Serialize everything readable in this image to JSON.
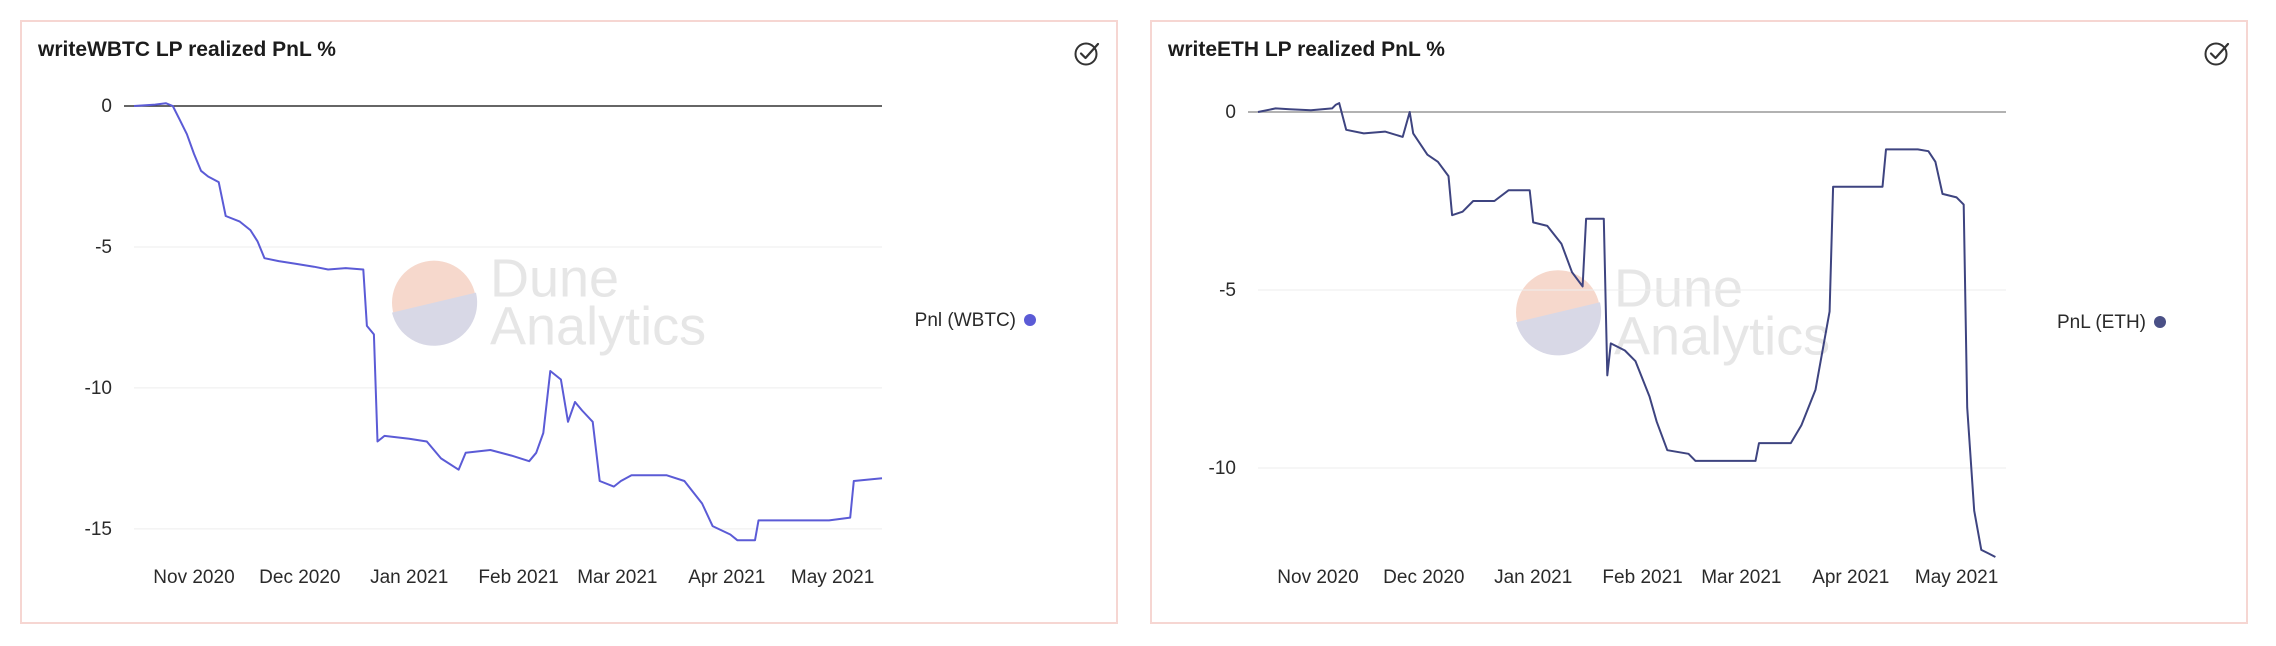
{
  "chart_data": [
    {
      "type": "line",
      "title": "writeWBTC LP realized PnL %",
      "watermark": [
        "Dune",
        "Analytics"
      ],
      "xlabel": "",
      "ylabel": "",
      "x_ticks": [
        "Nov 2020",
        "Dec 2020",
        "Jan 2021",
        "Feb 2021",
        "Mar 2021",
        "Apr 2021",
        "May 2021"
      ],
      "x_tick_dates": [
        "2020-11-01",
        "2020-12-01",
        "2021-01-01",
        "2021-02-01",
        "2021-03-01",
        "2021-04-01",
        "2021-05-01"
      ],
      "y_ticks": [
        0,
        -5,
        -10,
        -15
      ],
      "xlim": [
        "2020-10-15",
        "2021-05-15"
      ],
      "ylim": [
        -15.5,
        0
      ],
      "grid": "horizontal",
      "zero_line": true,
      "legend_position": "right",
      "series": [
        {
          "name": "Pnl (WBTC)",
          "color": "#5b5bd6",
          "dot_color": "#5b5bd6",
          "points": [
            [
              "2020-10-15",
              0
            ],
            [
              "2020-10-21",
              0.05
            ],
            [
              "2020-10-24",
              0.1
            ],
            [
              "2020-10-26",
              0
            ],
            [
              "2020-10-28",
              -0.5
            ],
            [
              "2020-10-30",
              -1
            ],
            [
              "2020-11-01",
              -1.7
            ],
            [
              "2020-11-03",
              -2.3
            ],
            [
              "2020-11-05",
              -2.5
            ],
            [
              "2020-11-08",
              -2.7
            ],
            [
              "2020-11-10",
              -3.9
            ],
            [
              "2020-11-14",
              -4.1
            ],
            [
              "2020-11-17",
              -4.4
            ],
            [
              "2020-11-19",
              -4.8
            ],
            [
              "2020-11-21",
              -5.4
            ],
            [
              "2020-11-25",
              -5.5
            ],
            [
              "2020-11-30",
              -5.6
            ],
            [
              "2020-12-05",
              -5.7
            ],
            [
              "2020-12-09",
              -5.8
            ],
            [
              "2020-12-14",
              -5.75
            ],
            [
              "2020-12-19",
              -5.8
            ],
            [
              "2020-12-20",
              -7.8
            ],
            [
              "2020-12-22",
              -8.1
            ],
            [
              "2020-12-23",
              -11.9
            ],
            [
              "2020-12-25",
              -11.7
            ],
            [
              "2021-01-01",
              -11.8
            ],
            [
              "2021-01-06",
              -11.9
            ],
            [
              "2021-01-10",
              -12.5
            ],
            [
              "2021-01-15",
              -12.9
            ],
            [
              "2021-01-17",
              -12.3
            ],
            [
              "2021-01-24",
              -12.2
            ],
            [
              "2021-01-30",
              -12.4
            ],
            [
              "2021-02-04",
              -12.6
            ],
            [
              "2021-02-06",
              -12.3
            ],
            [
              "2021-02-08",
              -11.6
            ],
            [
              "2021-02-10",
              -9.4
            ],
            [
              "2021-02-13",
              -9.7
            ],
            [
              "2021-02-15",
              -11.2
            ],
            [
              "2021-02-17",
              -10.5
            ],
            [
              "2021-02-19",
              -10.8
            ],
            [
              "2021-02-22",
              -11.2
            ],
            [
              "2021-02-24",
              -13.3
            ],
            [
              "2021-02-28",
              -13.5
            ],
            [
              "2021-03-02",
              -13.3
            ],
            [
              "2021-03-05",
              -13.1
            ],
            [
              "2021-03-15",
              -13.1
            ],
            [
              "2021-03-20",
              -13.3
            ],
            [
              "2021-03-25",
              -14.1
            ],
            [
              "2021-03-28",
              -14.9
            ],
            [
              "2021-04-02",
              -15.2
            ],
            [
              "2021-04-04",
              -15.4
            ],
            [
              "2021-04-09",
              -15.4
            ],
            [
              "2021-04-10",
              -14.7
            ],
            [
              "2021-04-20",
              -14.7
            ],
            [
              "2021-04-30",
              -14.7
            ],
            [
              "2021-05-06",
              -14.6
            ],
            [
              "2021-05-07",
              -13.3
            ],
            [
              "2021-05-15",
              -13.2
            ]
          ]
        }
      ]
    },
    {
      "type": "line",
      "title": "writeETH LP realized PnL %",
      "watermark": [
        "Dune",
        "Analytics"
      ],
      "xlabel": "",
      "ylabel": "",
      "x_ticks": [
        "Nov 2020",
        "Dec 2020",
        "Jan 2021",
        "Feb 2021",
        "Mar 2021",
        "Apr 2021",
        "May 2021"
      ],
      "x_tick_dates": [
        "2020-11-01",
        "2020-12-01",
        "2021-01-01",
        "2021-02-01",
        "2021-03-01",
        "2021-04-01",
        "2021-05-01"
      ],
      "y_ticks": [
        0,
        -5,
        -10
      ],
      "xlim": [
        "2020-10-15",
        "2021-05-15"
      ],
      "ylim": [
        -12.5,
        0
      ],
      "grid": "horizontal",
      "zero_line": true,
      "legend_position": "right",
      "series": [
        {
          "name": "PnL (ETH)",
          "color": "#3e4480",
          "dot_color": "#4a5086",
          "points": [
            [
              "2020-10-15",
              0
            ],
            [
              "2020-10-20",
              0.1
            ],
            [
              "2020-10-24",
              0.08
            ],
            [
              "2020-10-30",
              0.05
            ],
            [
              "2020-11-05",
              0.1
            ],
            [
              "2020-11-06",
              0.2
            ],
            [
              "2020-11-07",
              0.25
            ],
            [
              "2020-11-09",
              -0.5
            ],
            [
              "2020-11-14",
              -0.6
            ],
            [
              "2020-11-20",
              -0.55
            ],
            [
              "2020-11-25",
              -0.7
            ],
            [
              "2020-11-27",
              0
            ],
            [
              "2020-11-28",
              -0.6
            ],
            [
              "2020-12-02",
              -1.2
            ],
            [
              "2020-12-05",
              -1.4
            ],
            [
              "2020-12-08",
              -1.8
            ],
            [
              "2020-12-09",
              -2.9
            ],
            [
              "2020-12-12",
              -2.8
            ],
            [
              "2020-12-15",
              -2.5
            ],
            [
              "2020-12-21",
              -2.5
            ],
            [
              "2020-12-25",
              -2.2
            ],
            [
              "2020-12-31",
              -2.2
            ],
            [
              "2021-01-01",
              -3.1
            ],
            [
              "2021-01-05",
              -3.2
            ],
            [
              "2021-01-09",
              -3.7
            ],
            [
              "2021-01-12",
              -4.5
            ],
            [
              "2021-01-15",
              -4.9
            ],
            [
              "2021-01-16",
              -3
            ],
            [
              "2021-01-21",
              -3
            ],
            [
              "2021-01-22",
              -7.4
            ],
            [
              "2021-01-23",
              -6.5
            ],
            [
              "2021-01-27",
              -6.7
            ],
            [
              "2021-01-30",
              -7
            ],
            [
              "2021-02-03",
              -8
            ],
            [
              "2021-02-05",
              -8.7
            ],
            [
              "2021-02-08",
              -9.5
            ],
            [
              "2021-02-14",
              -9.6
            ],
            [
              "2021-02-16",
              -9.8
            ],
            [
              "2021-02-25",
              -9.8
            ],
            [
              "2021-03-01",
              -9.8
            ],
            [
              "2021-03-05",
              -9.8
            ],
            [
              "2021-03-06",
              -9.3
            ],
            [
              "2021-03-15",
              -9.3
            ],
            [
              "2021-03-18",
              -8.8
            ],
            [
              "2021-03-22",
              -7.8
            ],
            [
              "2021-03-26",
              -5.6
            ],
            [
              "2021-03-27",
              -2.1
            ],
            [
              "2021-04-01",
              -2.1
            ],
            [
              "2021-04-10",
              -2.1
            ],
            [
              "2021-04-11",
              -1.05
            ],
            [
              "2021-04-20",
              -1.05
            ],
            [
              "2021-04-23",
              -1.1
            ],
            [
              "2021-04-25",
              -1.4
            ],
            [
              "2021-04-27",
              -2.3
            ],
            [
              "2021-05-01",
              -2.4
            ],
            [
              "2021-05-03",
              -2.6
            ],
            [
              "2021-05-04",
              -8.3
            ],
            [
              "2021-05-06",
              -11.2
            ],
            [
              "2021-05-08",
              -12.3
            ],
            [
              "2021-05-10",
              -12.4
            ],
            [
              "2021-05-12",
              -12.5
            ]
          ]
        }
      ]
    }
  ]
}
